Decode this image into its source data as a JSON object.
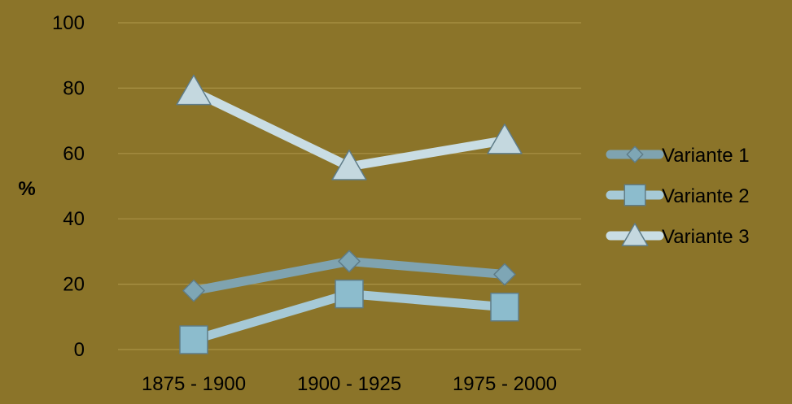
{
  "chart_data": {
    "type": "line",
    "title": "",
    "xlabel": "",
    "ylabel": "%",
    "ylim": [
      0,
      100
    ],
    "yticks": [
      0,
      20,
      40,
      60,
      80,
      100
    ],
    "grid": true,
    "legend_position": "right",
    "categories": [
      "1875 - 1900",
      "1900 - 1925",
      "1975 - 2000"
    ],
    "series": [
      {
        "name": "Variante 1",
        "marker": "diamond",
        "color": "#7fa3b0",
        "marker_color": "#7ea6b5",
        "values": [
          18,
          27,
          23
        ]
      },
      {
        "name": "Variante 2",
        "marker": "square",
        "color": "#a6c9d6",
        "marker_color": "#8cbccd",
        "values": [
          3,
          17,
          13
        ]
      },
      {
        "name": "Variante 3",
        "marker": "triangle",
        "color": "#c9dde4",
        "marker_color": "#c4d8df",
        "values": [
          79,
          56,
          64
        ]
      }
    ]
  },
  "colors": {
    "background": "#8b7429",
    "gridline": "#a99246",
    "text": "#000000"
  }
}
